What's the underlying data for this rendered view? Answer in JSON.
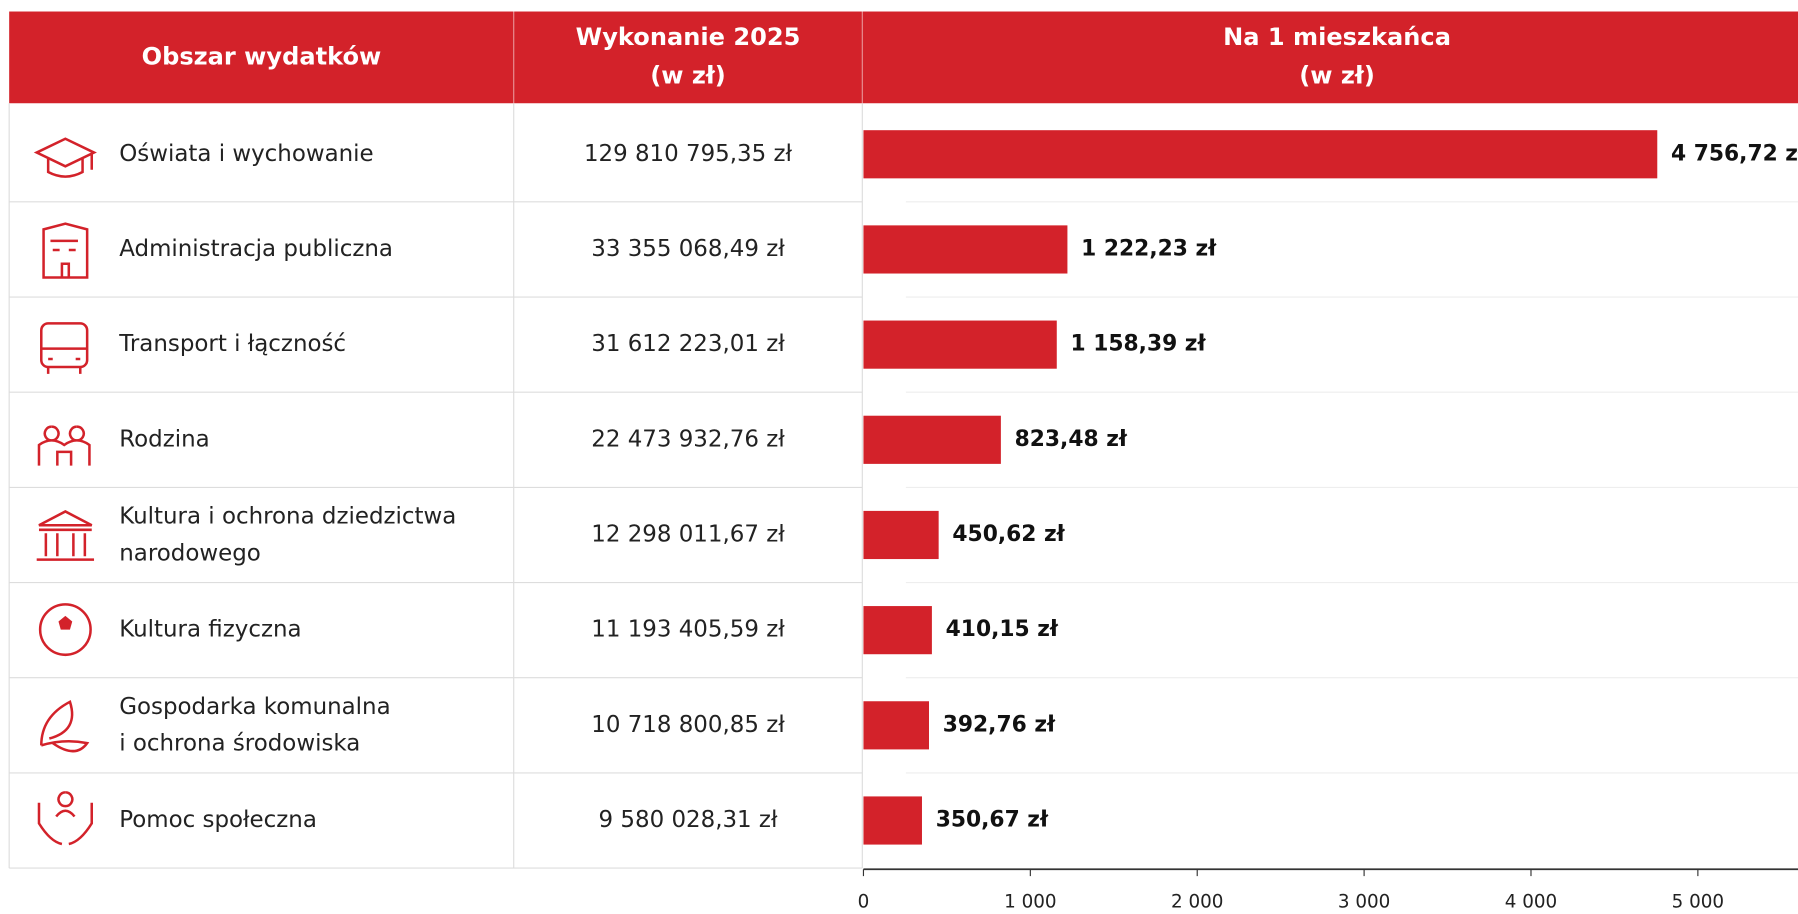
{
  "chart_data": {
    "type": "bar",
    "headers": [
      "Obszar wydatków",
      "Wykonanie 2025\n(w zł)",
      "Na 1 mieszkańca\n(w zł)"
    ],
    "categories": [
      "Oświata i wychowanie",
      "Administracja publiczna",
      "Transport i łączność",
      "Rodzina",
      "Kultura i ochrona dziedzictwa\nnarodowego",
      "Kultura fizyczna",
      "Gospodarka komunalna\ni ochrona środowiska",
      "Pomoc społeczna"
    ],
    "amounts": [
      "129 810 795,35 zł",
      "33 355 068,49 zł",
      "31 612 223,01 zł",
      "22 473 932,76 zł",
      "12 298 011,67 zł",
      "11 193 405,59 zł",
      "10 718 800,85 zł",
      "9 580 028,31 zł"
    ],
    "values": [
      4756.72,
      1222.23,
      1158.39,
      823.48,
      450.62,
      410.15,
      392.76,
      350.67
    ],
    "value_labels": [
      "4 756,72 zł",
      "1 222,23 zł",
      "1 158,39 zł",
      "823,48 zł",
      "450,62 zł",
      "410,15 zł",
      "392,76 zł",
      "350,67 zł"
    ],
    "color": "#d3222a",
    "xlim": [
      0,
      5600
    ],
    "xticks": [
      0,
      {
        "value": 1000,
        "label": "1 000"
      },
      {
        "value": 2000,
        "label": "2 000"
      },
      {
        "value": 3000,
        "label": "3 000"
      },
      {
        "value": 4000,
        "label": "4 000"
      },
      {
        "value": 5000,
        "label": "5 000"
      }
    ]
  }
}
